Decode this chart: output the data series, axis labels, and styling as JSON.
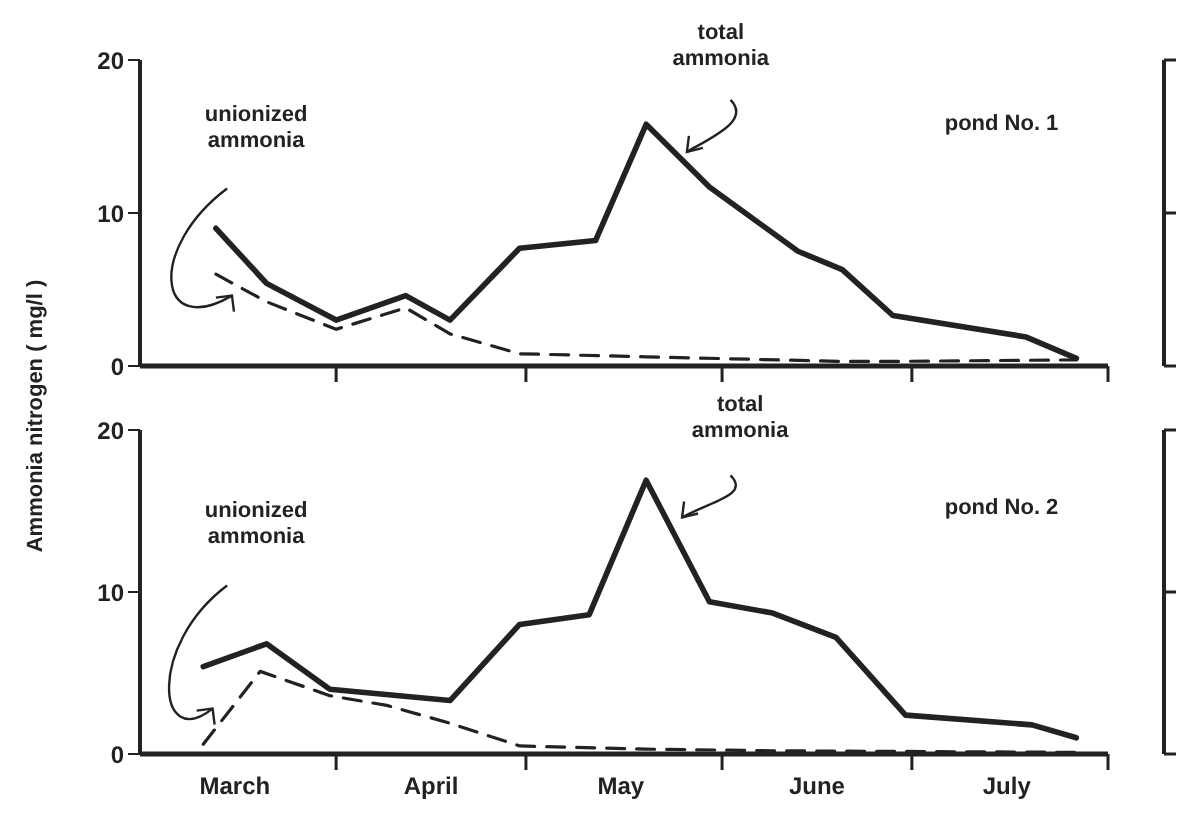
{
  "chart_data": [
    {
      "type": "line",
      "ylabel": "Ammonia nitrogen ( mg/l )",
      "xlim": [
        "--03-01",
        "--08-01"
      ],
      "xticks": [
        {
          "value": "--03-16",
          "label": "March"
        },
        {
          "value": "--04-01",
          "label": null
        },
        {
          "value": "--04-16",
          "label": "April"
        },
        {
          "value": "--05-01",
          "label": null
        },
        {
          "value": "--05-16",
          "label": "May"
        },
        {
          "value": "--06-01",
          "label": null
        },
        {
          "value": "--06-16",
          "label": "June"
        },
        {
          "value": "--07-01",
          "label": null
        },
        {
          "value": "--07-16",
          "label": "July"
        },
        {
          "value": "--08-01",
          "label": null
        }
      ],
      "tick_labels": "y",
      "ylim": [
        0,
        20
      ],
      "yticks": [
        0,
        10,
        20
      ],
      "marker": "none",
      "series": [
        {
          "color": "#222222",
          "line_style": "solid",
          "x": [
            "--03-13",
            "--03-21",
            "--04-01",
            "--04-12",
            "--04-19",
            "--04-30",
            "--05-12",
            "--05-20",
            "--05-30",
            "--06-13",
            "--06-20",
            "--06-28",
            "--07-19",
            "--07-27"
          ],
          "values": [
            9.0,
            5.4,
            3.0,
            4.6,
            3.0,
            7.7,
            8.2,
            15.8,
            11.7,
            7.5,
            6.3,
            3.3,
            1.9,
            0.5
          ]
        },
        {
          "color": "#222222",
          "line_style": "dashed",
          "x": [
            "--03-13",
            "--03-21",
            "--04-01",
            "--04-12",
            "--04-19",
            "--04-30",
            "--05-20",
            "--06-20",
            "--06-28",
            "--07-27"
          ],
          "values": [
            6.0,
            4.2,
            2.4,
            3.8,
            2.1,
            0.8,
            0.6,
            0.3,
            0.3,
            0.4
          ]
        }
      ],
      "annotations": [
        "unionized ammonia",
        "total ammonia",
        "pond No. 1"
      ]
    },
    {
      "type": "line",
      "xlim": [
        "--03-01",
        "--08-01"
      ],
      "xticks": [
        {
          "value": "--03-16",
          "label": "March"
        },
        {
          "value": "--04-01",
          "label": null
        },
        {
          "value": "--04-16",
          "label": "April"
        },
        {
          "value": "--05-01",
          "label": null
        },
        {
          "value": "--05-16",
          "label": "May"
        },
        {
          "value": "--06-01",
          "label": null
        },
        {
          "value": "--06-16",
          "label": "June"
        },
        {
          "value": "--07-01",
          "label": null
        },
        {
          "value": "--07-16",
          "label": "July"
        },
        {
          "value": "--08-01",
          "label": null
        }
      ],
      "ylim": [
        0,
        20
      ],
      "yticks": [
        0,
        10,
        20
      ],
      "marker": "none",
      "series": [
        {
          "color": "#222222",
          "line_style": "solid",
          "x": [
            "--03-11",
            "--03-21",
            "--03-31",
            "--04-19",
            "--04-30",
            "--05-11",
            "--05-20",
            "--05-30",
            "--06-09",
            "--06-19",
            "--06-30",
            "--07-20",
            "--07-27"
          ],
          "values": [
            5.4,
            6.8,
            4.0,
            3.3,
            8.0,
            8.6,
            16.9,
            9.4,
            8.7,
            7.2,
            2.4,
            1.8,
            1.0
          ]
        },
        {
          "color": "#222222",
          "line_style": "dashed",
          "x": [
            "--03-11",
            "--03-20",
            "--03-31",
            "--04-09",
            "--04-19",
            "--04-30",
            "--05-20",
            "--06-09",
            "--07-27"
          ],
          "values": [
            0.6,
            5.1,
            3.6,
            3.0,
            1.9,
            0.5,
            0.3,
            0.2,
            0.1
          ]
        }
      ],
      "annotations": [
        "unionized ammonia",
        "total ammonia",
        "pond No. 2"
      ]
    }
  ]
}
